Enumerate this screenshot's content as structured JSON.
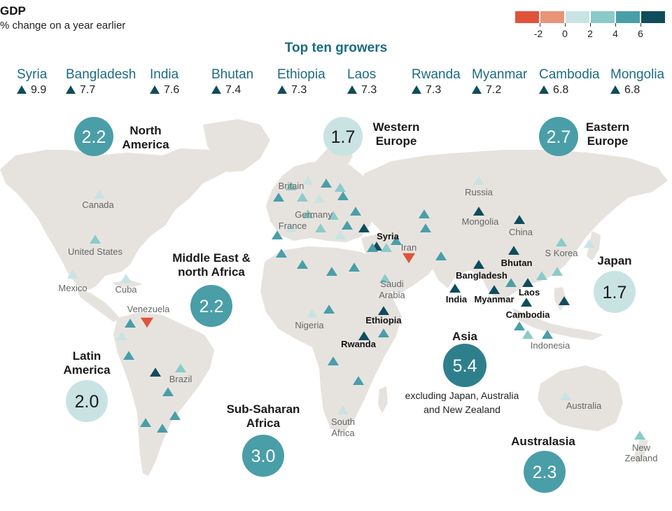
{
  "header": {
    "title": "GDP",
    "subtitle": "% change on a year earlier"
  },
  "legend": {
    "colors": [
      "#e0533a",
      "#e89478",
      "#c9e3e3",
      "#8ccaca",
      "#4a9ea8",
      "#0f4c5c"
    ],
    "labels": [
      "-2",
      "0",
      "2",
      "4",
      "6"
    ]
  },
  "top_ten": {
    "title": "Top ten growers",
    "items": [
      {
        "name": "Syria",
        "value": "9.9"
      },
      {
        "name": "Bangladesh",
        "value": "7.7"
      },
      {
        "name": "India",
        "value": "7.6"
      },
      {
        "name": "Bhutan",
        "value": "7.4"
      },
      {
        "name": "Ethiopia",
        "value": "7.3"
      },
      {
        "name": "Laos",
        "value": "7.3"
      },
      {
        "name": "Rwanda",
        "value": "7.3"
      },
      {
        "name": "Myanmar",
        "value": "7.2"
      },
      {
        "name": "Cambodia",
        "value": "6.8"
      },
      {
        "name": "Mongolia",
        "value": "6.8"
      }
    ]
  },
  "regions": [
    {
      "name_lines": [
        "North",
        "America"
      ],
      "value": "2.2",
      "color": "#4a9ea8"
    },
    {
      "name_lines": [
        "Western",
        "Europe"
      ],
      "value": "1.7",
      "color": "#c9e3e3"
    },
    {
      "name_lines": [
        "Eastern",
        "Europe"
      ],
      "value": "2.7",
      "color": "#4a9ea8"
    },
    {
      "name_lines": [
        "Middle East &",
        "north Africa"
      ],
      "value": "2.2",
      "color": "#4a9ea8"
    },
    {
      "name_lines": [
        "Japan"
      ],
      "value": "1.7",
      "color": "#c9e3e3"
    },
    {
      "name_lines": [
        "Latin",
        "America"
      ],
      "value": "2.0",
      "color": "#c9e3e3"
    },
    {
      "name_lines": [
        "Sub-Saharan",
        "Africa"
      ],
      "value": "3.0",
      "color": "#4a9ea8"
    },
    {
      "name_lines": [
        "Asia"
      ],
      "value": "5.4",
      "color": "#2e7f8c",
      "note_lines": [
        "excluding Japan, Australia",
        "and New Zealand"
      ]
    },
    {
      "name_lines": [
        "Australasia"
      ],
      "value": "2.3",
      "color": "#4a9ea8"
    }
  ],
  "country_labels": {
    "gray": [
      "Canada",
      "United States",
      "Mexico",
      "Cuba",
      "Venezuela",
      "Brazil",
      "Britain",
      "Germany",
      "France",
      "Russia",
      "Mongolia",
      "China",
      "S Korea",
      "Iran",
      "Saudi",
      "Arabia",
      "Nigeria",
      "South",
      "Africa",
      "Indonesia",
      "Australia",
      "New",
      "Zealand"
    ],
    "bold": [
      "Syria",
      "Bhutan",
      "Bangladesh",
      "India",
      "Myanmar",
      "Laos",
      "Cambodia",
      "Ethiopia",
      "Rwanda"
    ]
  }
}
